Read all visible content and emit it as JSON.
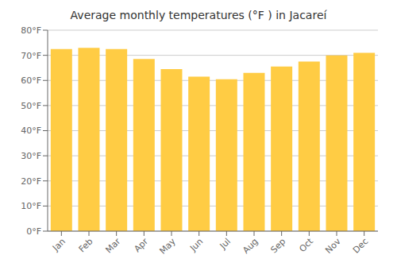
{
  "chart_data": {
    "type": "bar",
    "title": "Average monthly temperatures (°F ) in Jacareí",
    "categories": [
      "Jan",
      "Feb",
      "Mar",
      "Apr",
      "May",
      "Jun",
      "Jul",
      "Aug",
      "Sep",
      "Oct",
      "Nov",
      "Dec"
    ],
    "values": [
      72.5,
      73.0,
      72.5,
      68.5,
      64.5,
      61.5,
      60.5,
      63.0,
      65.5,
      67.5,
      70.0,
      71.0
    ],
    "color": "#FFCC44",
    "ylim": [
      0,
      80
    ],
    "yticks": [
      {
        "value": 0,
        "label": "0°F"
      },
      {
        "value": 10,
        "label": "10°F"
      },
      {
        "value": 20,
        "label": "20°F"
      },
      {
        "value": 30,
        "label": "30°F"
      },
      {
        "value": 40,
        "label": "40°F"
      },
      {
        "value": 50,
        "label": "50°F"
      },
      {
        "value": 60,
        "label": "60°F"
      },
      {
        "value": 70,
        "label": "70°F"
      },
      {
        "value": 80,
        "label": "80°F"
      }
    ],
    "grid": true
  }
}
